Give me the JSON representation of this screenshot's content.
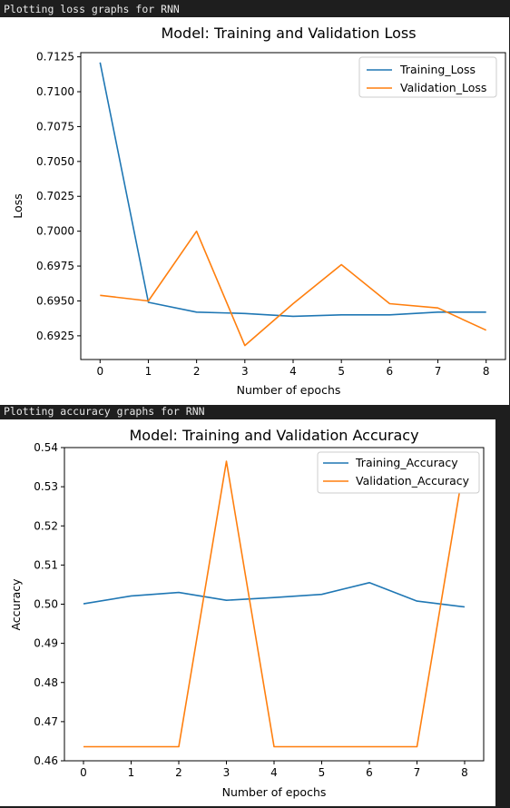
{
  "cells": {
    "loss_output_label": "Plotting loss graphs for RNN",
    "accuracy_output_label": "Plotting accuracy graphs for RNN"
  },
  "chart_data": [
    {
      "type": "line",
      "title": "Model: Training and Validation Loss",
      "xlabel": "Number of epochs",
      "ylabel": "Loss",
      "x": [
        0,
        1,
        2,
        3,
        4,
        5,
        6,
        7,
        8
      ],
      "xlim": [
        -0.4,
        8.4
      ],
      "ylim": [
        0.6908,
        0.7128
      ],
      "xticks": [
        "0",
        "1",
        "2",
        "3",
        "4",
        "5",
        "6",
        "7",
        "8"
      ],
      "yticks": [
        "0.6925",
        "0.6950",
        "0.6975",
        "0.7000",
        "0.7025",
        "0.7050",
        "0.7075",
        "0.7100",
        "0.7125"
      ],
      "grid": false,
      "legend_loc": "upper right",
      "series": [
        {
          "name": "Training_Loss",
          "color": "#1f77b4",
          "values": [
            0.7121,
            0.6949,
            0.6942,
            0.6941,
            0.6939,
            0.694,
            0.694,
            0.6942,
            0.6942
          ]
        },
        {
          "name": "Validation_Loss",
          "color": "#ff7f0e",
          "values": [
            0.6954,
            0.695,
            0.7,
            0.6918,
            0.6948,
            0.6976,
            0.6948,
            0.6945,
            0.6929
          ]
        }
      ]
    },
    {
      "type": "line",
      "title": "Model: Training and Validation Accuracy",
      "xlabel": "Number of epochs",
      "ylabel": "Accuracy",
      "x": [
        0,
        1,
        2,
        3,
        4,
        5,
        6,
        7,
        8
      ],
      "xlim": [
        -0.4,
        8.4
      ],
      "ylim": [
        0.46,
        0.54
      ],
      "xticks": [
        "0",
        "1",
        "2",
        "3",
        "4",
        "5",
        "6",
        "7",
        "8"
      ],
      "yticks": [
        "0.46",
        "0.47",
        "0.48",
        "0.49",
        "0.50",
        "0.51",
        "0.52",
        "0.53",
        "0.54"
      ],
      "grid": false,
      "legend_loc": "upper right",
      "series": [
        {
          "name": "Training_Accuracy",
          "color": "#1f77b4",
          "values": [
            0.5001,
            0.5021,
            0.503,
            0.501,
            0.5017,
            0.5025,
            0.5055,
            0.5008,
            0.4993
          ]
        },
        {
          "name": "Validation_Accuracy",
          "color": "#ff7f0e",
          "values": [
            0.4636,
            0.4636,
            0.4636,
            0.5365,
            0.4636,
            0.4636,
            0.4636,
            0.4636,
            0.5365
          ]
        }
      ]
    }
  ]
}
